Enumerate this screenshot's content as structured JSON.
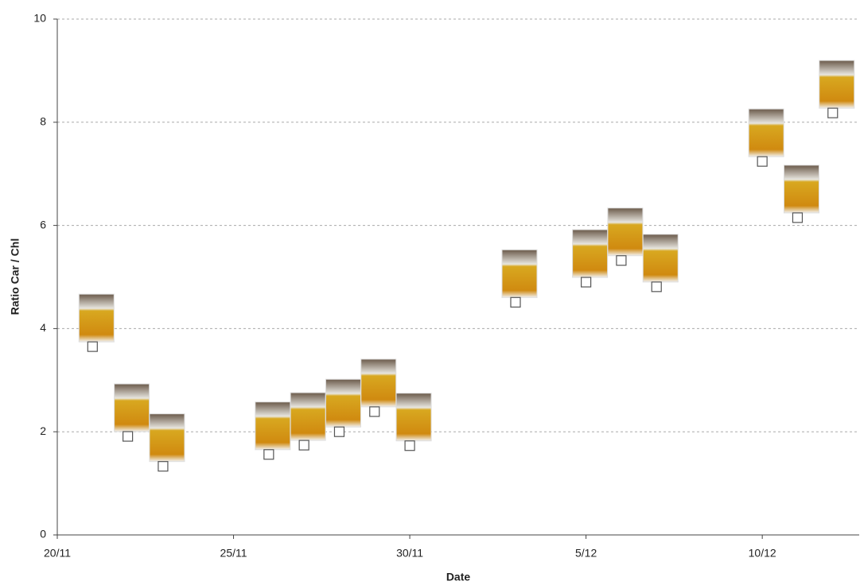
{
  "chart_data": {
    "type": "scatter",
    "x_label": "Date",
    "y_label": "Ratio Car / Chl",
    "x": [
      1,
      2,
      3,
      6,
      7,
      8,
      9,
      10,
      13,
      15,
      16,
      17,
      20,
      21,
      22
    ],
    "values": [
      3.65,
      1.91,
      1.33,
      1.56,
      1.74,
      2.0,
      2.39,
      1.73,
      4.51,
      4.9,
      5.32,
      4.81,
      7.24,
      6.15,
      8.18
    ],
    "color": "#555555",
    "xlim": [
      0,
      22.75
    ],
    "xticks": [
      {
        "value": 0,
        "label": "20/11"
      },
      {
        "value": 5,
        "label": "25/11"
      },
      {
        "value": 10,
        "label": "30/11"
      },
      {
        "value": 15,
        "label": "5/12"
      },
      {
        "value": 20,
        "label": "10/12"
      }
    ],
    "ylim": [
      0,
      10
    ],
    "yticks": [
      0,
      2,
      4,
      6,
      8,
      10
    ],
    "grid": true
  }
}
